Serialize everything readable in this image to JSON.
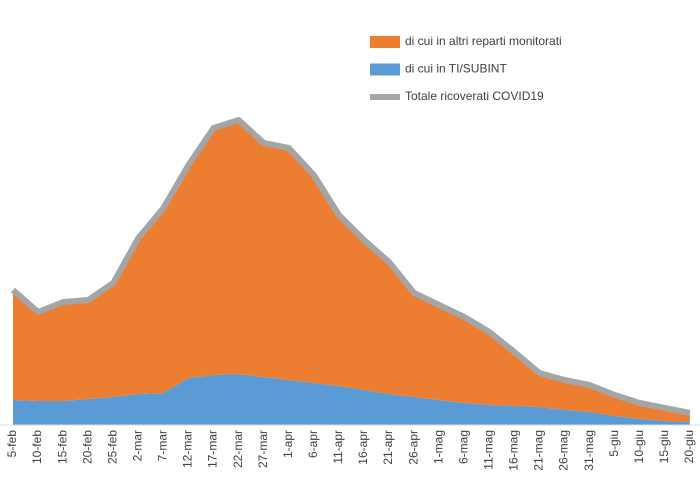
{
  "chart_data": {
    "type": "stacked_area",
    "categories": [
      "5-feb",
      "10-feb",
      "15-feb",
      "20-feb",
      "25-feb",
      "2-mar",
      "7-mar",
      "12-mar",
      "17-mar",
      "22-mar",
      "27-mar",
      "1-apr",
      "6-apr",
      "11-apr",
      "16-apr",
      "21-apr",
      "26-apr",
      "1-mag",
      "6-mag",
      "11-mag",
      "16-mag",
      "21-mag",
      "26-mag",
      "31-mag",
      "5-giu",
      "10-giu",
      "15-giu",
      "20-giu"
    ],
    "series": [
      {
        "name": "di cui in altri reparti monitorati",
        "color": "#ED7D31",
        "values": [
          110,
          89,
          99,
          99,
          114,
          156,
          185,
          213,
          247,
          254,
          234,
          232,
          208,
          171,
          150,
          132,
          104,
          95,
          86,
          73,
          54,
          34,
          30,
          27,
          21,
          16,
          13,
          9
        ]
      },
      {
        "name": "di cui in TI/SUBINT",
        "color": "#5B9BD5",
        "values": [
          25,
          24,
          24,
          26,
          28,
          31,
          32,
          47,
          50,
          51,
          48,
          45,
          42,
          39,
          35,
          31,
          28,
          25,
          22,
          20,
          19,
          18,
          15,
          13,
          9,
          6,
          4,
          3
        ]
      },
      {
        "name": "Totale ricoverati COVID19",
        "color": "#A5A5A5",
        "type": "line",
        "values": [
          135,
          113,
          123,
          125,
          142,
          187,
          217,
          260,
          297,
          305,
          282,
          277,
          250,
          210,
          185,
          163,
          132,
          120,
          108,
          93,
          73,
          52,
          45,
          40,
          30,
          22,
          17,
          12
        ]
      }
    ],
    "ylim": [
      0,
      320
    ]
  }
}
